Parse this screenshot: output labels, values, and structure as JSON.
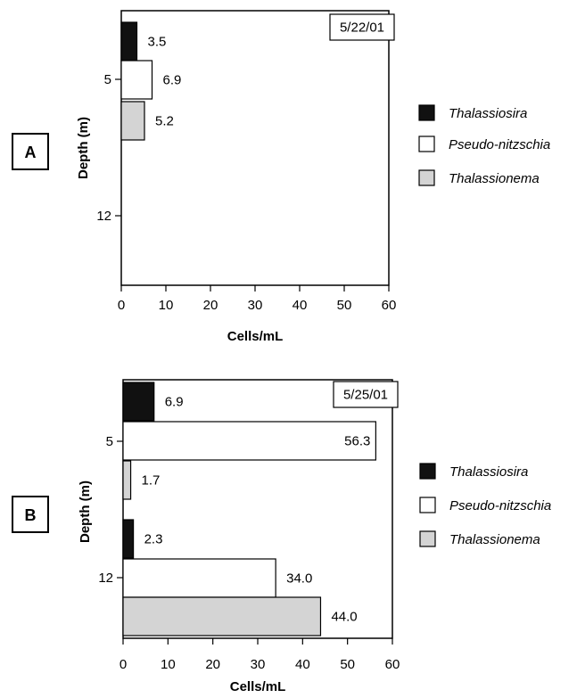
{
  "chart_data": [
    {
      "type": "bar",
      "orientation": "horizontal",
      "panel_label": "A",
      "date": "5/22/01",
      "xlabel": "Cells/mL",
      "ylabel": "Depth (m)",
      "xlim": [
        0,
        60
      ],
      "xticks": [
        0,
        10,
        20,
        30,
        40,
        50,
        60
      ],
      "yticks": [
        "5",
        "12"
      ],
      "legend_position": "right",
      "series": [
        {
          "name": "Thalassiosira",
          "color": "#111111"
        },
        {
          "name": "Pseudo-nitzschia",
          "color": "#ffffff"
        },
        {
          "name": "Thalassionema",
          "color": "#d4d4d4"
        }
      ],
      "groups": [
        {
          "depth": "5",
          "values": [
            3.5,
            6.9,
            5.2
          ],
          "labels": [
            "3.5",
            "6.9",
            "5.2"
          ]
        }
      ]
    },
    {
      "type": "bar",
      "orientation": "horizontal",
      "panel_label": "B",
      "date": "5/25/01",
      "xlabel": "Cells/mL",
      "ylabel": "Depth (m)",
      "xlim": [
        0,
        60
      ],
      "xticks": [
        0,
        10,
        20,
        30,
        40,
        50,
        60
      ],
      "yticks": [
        "5",
        "12"
      ],
      "legend_position": "right",
      "series": [
        {
          "name": "Thalassiosira",
          "color": "#111111"
        },
        {
          "name": "Pseudo-nitzschia",
          "color": "#ffffff"
        },
        {
          "name": "Thalassionema",
          "color": "#d4d4d4"
        }
      ],
      "groups": [
        {
          "depth": "5",
          "values": [
            6.9,
            56.3,
            1.7
          ],
          "labels": [
            "6.9",
            "56.3",
            "1.7"
          ]
        },
        {
          "depth": "12",
          "values": [
            2.3,
            34.0,
            44.0
          ],
          "labels": [
            "2.3",
            "34.0",
            "44.0"
          ]
        }
      ]
    }
  ]
}
